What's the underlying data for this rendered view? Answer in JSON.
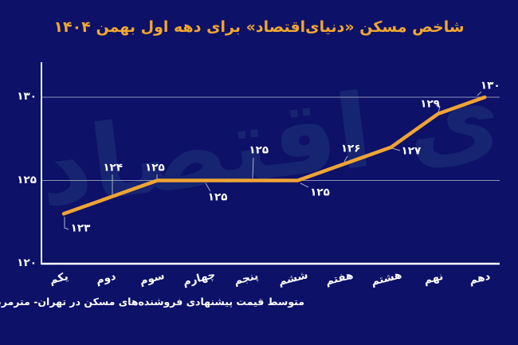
{
  "title": "شاخص مسکن «دنیای‌اقتصاد» برای دهه اول بهمن ۱۴۰۴",
  "caption": "متوسط قیمت پیشنهادی فروشنده‌های مسکن در تهران- مترمربع به میلیون تومان",
  "watermark": "دنیای اقتصاد",
  "colors": {
    "background": "#0d1168",
    "title": "#f1a72f",
    "line": "#f0a434",
    "text": "#ffffff",
    "grid": "#99a0bf",
    "axis": "#eef0f8",
    "leader": "#aab1cc",
    "watermark": "#162471"
  },
  "chart_data": {
    "type": "line",
    "title": "شاخص مسکن «دنیای‌اقتصاد» برای دهه اول بهمن ۱۴۰۴",
    "categories": [
      "یکم",
      "دوم",
      "سوم",
      "چهارم",
      "پنجم",
      "ششم",
      "هفتم",
      "هشتم",
      "نهم",
      "دهم"
    ],
    "values": [
      123,
      124,
      125,
      125,
      125,
      125,
      126,
      127,
      129,
      130
    ],
    "point_labels": [
      "۱۲۳",
      "۱۲۴",
      "۱۲۵",
      "۱۲۵",
      "۱۲۵",
      "۱۲۵",
      "۱۲۶",
      "۱۲۷",
      "۱۲۹",
      "۱۳۰"
    ],
    "series_name": "شاخص مسکن",
    "xlabel": "",
    "ylabel": "",
    "y_axis": {
      "range": [
        120,
        132
      ],
      "ticks": [
        {
          "value": 120,
          "label": "۱۲۰"
        },
        {
          "value": 125,
          "label": "۱۲۵"
        },
        {
          "value": 130,
          "label": "۱۳۰"
        }
      ]
    },
    "grid": "horizontal-at-125-and-130",
    "legend": "none",
    "line_color": "#f0a434",
    "note": "متوسط قیمت پیشنهادی فروشنده‌های مسکن در تهران- مترمربع به میلیون تومان"
  }
}
